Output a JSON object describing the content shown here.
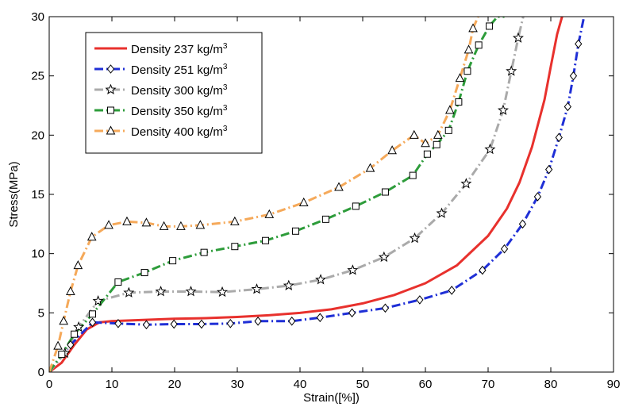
{
  "chart_data": {
    "type": "line",
    "xlabel": "Strain([%])",
    "ylabel": "Stress(MPa)",
    "xlim": [
      0,
      90
    ],
    "ylim": [
      0,
      30
    ],
    "xticks": [
      0,
      10,
      20,
      30,
      40,
      50,
      60,
      70,
      80,
      90
    ],
    "yticks": [
      0,
      5,
      10,
      15,
      20,
      25,
      30
    ],
    "grid": false,
    "legend_position": "top-left",
    "series": [
      {
        "name": "Density 237 kg/m3",
        "legend_label": "Density 237 kg/m",
        "legend_sup": "3",
        "color": "#e8312d",
        "dash": "solid",
        "marker": "none",
        "x": [
          0,
          2,
          4,
          6,
          8,
          10,
          15,
          20,
          25,
          30,
          35,
          40,
          45,
          50,
          55,
          60,
          65,
          70,
          73,
          75,
          77,
          79,
          80,
          81,
          81.8
        ],
        "y": [
          0,
          0.8,
          2.3,
          3.6,
          4.2,
          4.3,
          4.4,
          4.5,
          4.55,
          4.65,
          4.8,
          5.0,
          5.3,
          5.8,
          6.5,
          7.5,
          9.0,
          11.5,
          13.8,
          16.0,
          19.0,
          23.0,
          25.8,
          28.5,
          30
        ]
      },
      {
        "name": "Density 251 kg/m3",
        "legend_label": "Density 251 kg/m",
        "legend_sup": "3",
        "color": "#1f2fd6",
        "dash": "dashdot",
        "marker": "diamond",
        "x": [
          0,
          3.4,
          6.9,
          11,
          15.5,
          19.9,
          24.3,
          28.9,
          33.3,
          38.7,
          43.2,
          48.3,
          53.6,
          59.1,
          64.2,
          69.1,
          72.6,
          75.5,
          77.9,
          79.7,
          81.3,
          82.7,
          83.6,
          84.4,
          85.3
        ],
        "y": [
          0,
          2.3,
          4.2,
          4.1,
          4.0,
          4.05,
          4.05,
          4.1,
          4.3,
          4.3,
          4.6,
          5.0,
          5.4,
          6.1,
          6.9,
          8.6,
          10.4,
          12.5,
          14.8,
          17.1,
          19.8,
          22.4,
          25.0,
          27.7,
          30
        ]
      },
      {
        "name": "Density 300 kg/m3",
        "legend_label": "Density 300 kg/m",
        "legend_sup": "3",
        "color": "#aaaaaa",
        "dash": "dashdot",
        "marker": "star",
        "x": [
          0,
          2.5,
          4.7,
          7.8,
          12.7,
          17.8,
          22.6,
          27.6,
          33.1,
          38.2,
          43.3,
          48.4,
          53.4,
          58.3,
          62.6,
          66.5,
          70.3,
          72.4,
          73.7,
          74.8,
          75.6
        ],
        "y": [
          0,
          1.6,
          3.8,
          6.0,
          6.7,
          6.8,
          6.8,
          6.75,
          7.0,
          7.3,
          7.8,
          8.6,
          9.7,
          11.3,
          13.4,
          15.9,
          18.8,
          22.1,
          25.4,
          28.2,
          30
        ]
      },
      {
        "name": "Density 350 kg/m3",
        "legend_label": "Density 350 kg/m",
        "legend_sup": "3",
        "color": "#2d9c3a",
        "dash": "dashdot",
        "marker": "square",
        "x": [
          0,
          2,
          4,
          6.9,
          11,
          15.2,
          19.7,
          24.7,
          29.6,
          34.5,
          39.3,
          44.1,
          48.9,
          53.6,
          58.0,
          60.3,
          61.8,
          63.7,
          65.3,
          66.7,
          68.5,
          70.2,
          71.5,
          72.6
        ],
        "y": [
          0,
          1.5,
          3.2,
          4.9,
          7.6,
          8.4,
          9.4,
          10.1,
          10.6,
          11.1,
          11.9,
          12.9,
          14.0,
          15.2,
          16.6,
          18.4,
          19.2,
          20.4,
          22.8,
          25.4,
          27.6,
          29.2,
          30,
          30
        ]
      },
      {
        "name": "Density 400 kg/m3",
        "legend_label": "Density 400 kg/m",
        "legend_sup": "3",
        "color": "#f5a95a",
        "dash": "dashdot",
        "marker": "triangle",
        "x": [
          0,
          1.4,
          2.3,
          3.4,
          4.6,
          6.8,
          9.5,
          12.4,
          15.5,
          18.3,
          21,
          24.1,
          29.6,
          35.1,
          40.6,
          46.2,
          51.2,
          54.7,
          58.2,
          60.0,
          62.0,
          63.9,
          65.5,
          66.9,
          67.6,
          68.4
        ],
        "y": [
          0,
          2.2,
          4.3,
          6.8,
          9.0,
          11.4,
          12.4,
          12.7,
          12.6,
          12.3,
          12.3,
          12.4,
          12.7,
          13.3,
          14.3,
          15.6,
          17.2,
          18.7,
          20.0,
          19.3,
          20.0,
          22.1,
          24.8,
          27.2,
          29.0,
          30
        ]
      }
    ]
  }
}
